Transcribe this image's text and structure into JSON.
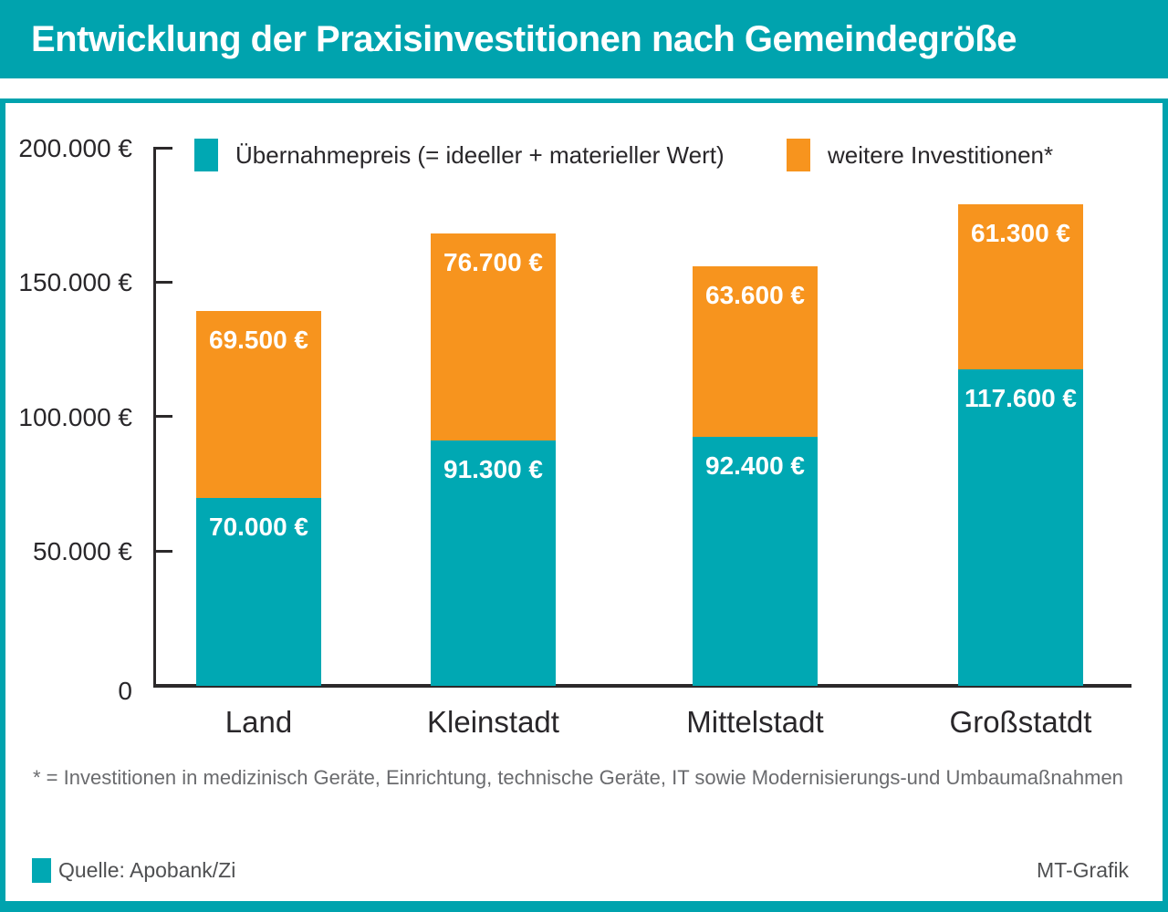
{
  "title": "Entwicklung der Praxisinvestitionen nach Gemeindegröße",
  "legend": {
    "items": [
      {
        "label": "Übernahmepreis (= ideeller + materieller Wert)",
        "color": "#00a8b3"
      },
      {
        "label": "weitere Investitionen*",
        "color": "#f7941e"
      }
    ]
  },
  "chart_data": {
    "type": "bar",
    "stacked": true,
    "title": "Entwicklung der Praxisinvestitionen nach Gemeindegröße",
    "categories": [
      "Land",
      "Kleinstadt",
      "Mittelstadt",
      "Großstatdt"
    ],
    "series": [
      {
        "name": "Übernahmepreis (= ideeller + materieller Wert)",
        "color": "#00a8b3",
        "values": [
          70000,
          91300,
          92400,
          117600
        ],
        "labels": [
          "70.000 €",
          "91.300 €",
          "92.400 €",
          "117.600 €"
        ]
      },
      {
        "name": "weitere Investitionen*",
        "color": "#f7941e",
        "values": [
          69500,
          76700,
          63600,
          61300
        ],
        "labels": [
          "69.500 €",
          "76.700 €",
          "63.600 €",
          "61.300 €"
        ]
      }
    ],
    "totals": [
      139500,
      168000,
      156000,
      178900
    ],
    "ylim": [
      0,
      200000
    ],
    "y_ticks": [
      0,
      50000,
      100000,
      150000,
      200000
    ],
    "y_tick_labels": [
      "0",
      "50.000 €",
      "100.000 €",
      "150.000 €",
      "200.000 €"
    ],
    "grid": false,
    "legend_position": "top",
    "value_label_color": "#ffffff"
  },
  "footnote": "* = Investitionen in medizinisch Geräte, Einrichtung, technische Geräte, IT sowie Modernisierungs-und Umbaumaßnahmen",
  "source": {
    "label": "Quelle: Apobank/Zi",
    "swatch_color": "#00a8b3"
  },
  "credit": "MT-Grafik",
  "colors": {
    "teal": "#00a8b3",
    "teal_frame": "#00a3ae",
    "orange": "#f7941e",
    "text_dark": "#29272a",
    "text_gray": "#6a6b6e",
    "axis": "#2b292a"
  }
}
